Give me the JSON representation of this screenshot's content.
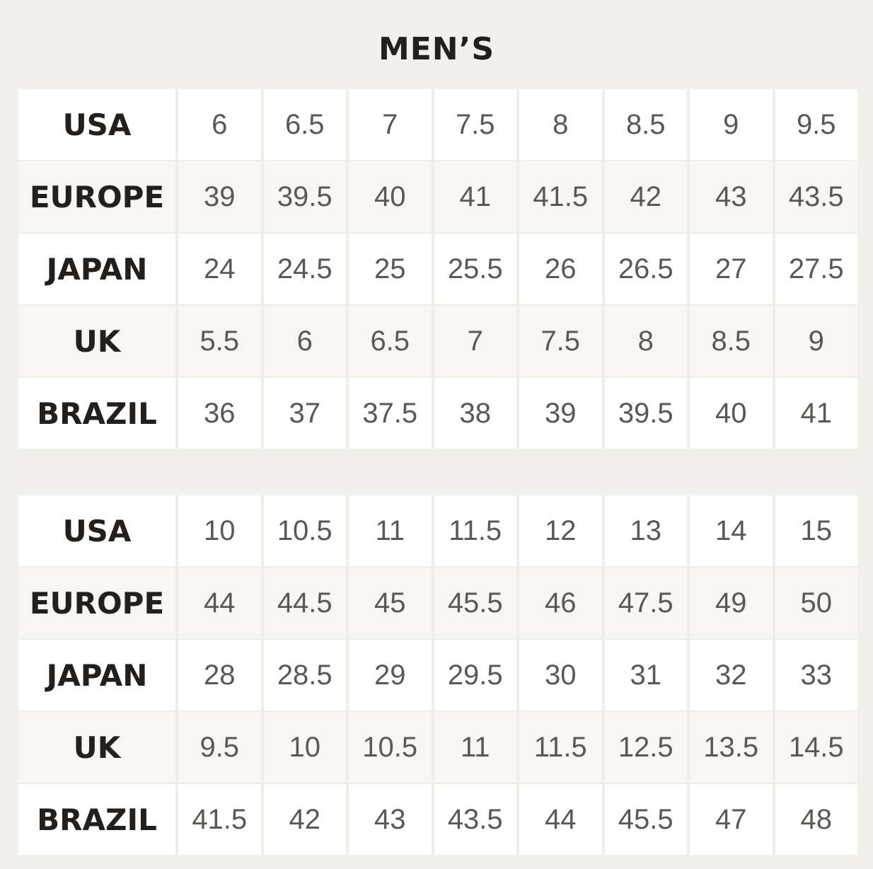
{
  "title": "MEN’S",
  "tables": [
    {
      "rows": [
        {
          "label": "USA",
          "values": [
            "6",
            "6.5",
            "7",
            "7.5",
            "8",
            "8.5",
            "9",
            "9.5"
          ]
        },
        {
          "label": "EUROPE",
          "values": [
            "39",
            "39.5",
            "40",
            "41",
            "41.5",
            "42",
            "43",
            "43.5"
          ]
        },
        {
          "label": "JAPAN",
          "values": [
            "24",
            "24.5",
            "25",
            "25.5",
            "26",
            "26.5",
            "27",
            "27.5"
          ]
        },
        {
          "label": "UK",
          "values": [
            "5.5",
            "6",
            "6.5",
            "7",
            "7.5",
            "8",
            "8.5",
            "9"
          ]
        },
        {
          "label": "BRAZIL",
          "values": [
            "36",
            "37",
            "37.5",
            "38",
            "39",
            "39.5",
            "40",
            "41"
          ]
        }
      ]
    },
    {
      "rows": [
        {
          "label": "USA",
          "values": [
            "10",
            "10.5",
            "11",
            "11.5",
            "12",
            "13",
            "14",
            "15"
          ]
        },
        {
          "label": "EUROPE",
          "values": [
            "44",
            "44.5",
            "45",
            "45.5",
            "46",
            "47.5",
            "49",
            "50"
          ]
        },
        {
          "label": "JAPAN",
          "values": [
            "28",
            "28.5",
            "29",
            "29.5",
            "30",
            "31",
            "32",
            "33"
          ]
        },
        {
          "label": "UK",
          "values": [
            "9.5",
            "10",
            "10.5",
            "11",
            "11.5",
            "12.5",
            "13.5",
            "14.5"
          ]
        },
        {
          "label": "BRAZIL",
          "values": [
            "41.5",
            "42",
            "43",
            "43.5",
            "44",
            "45.5",
            "47",
            "48"
          ]
        }
      ]
    }
  ]
}
